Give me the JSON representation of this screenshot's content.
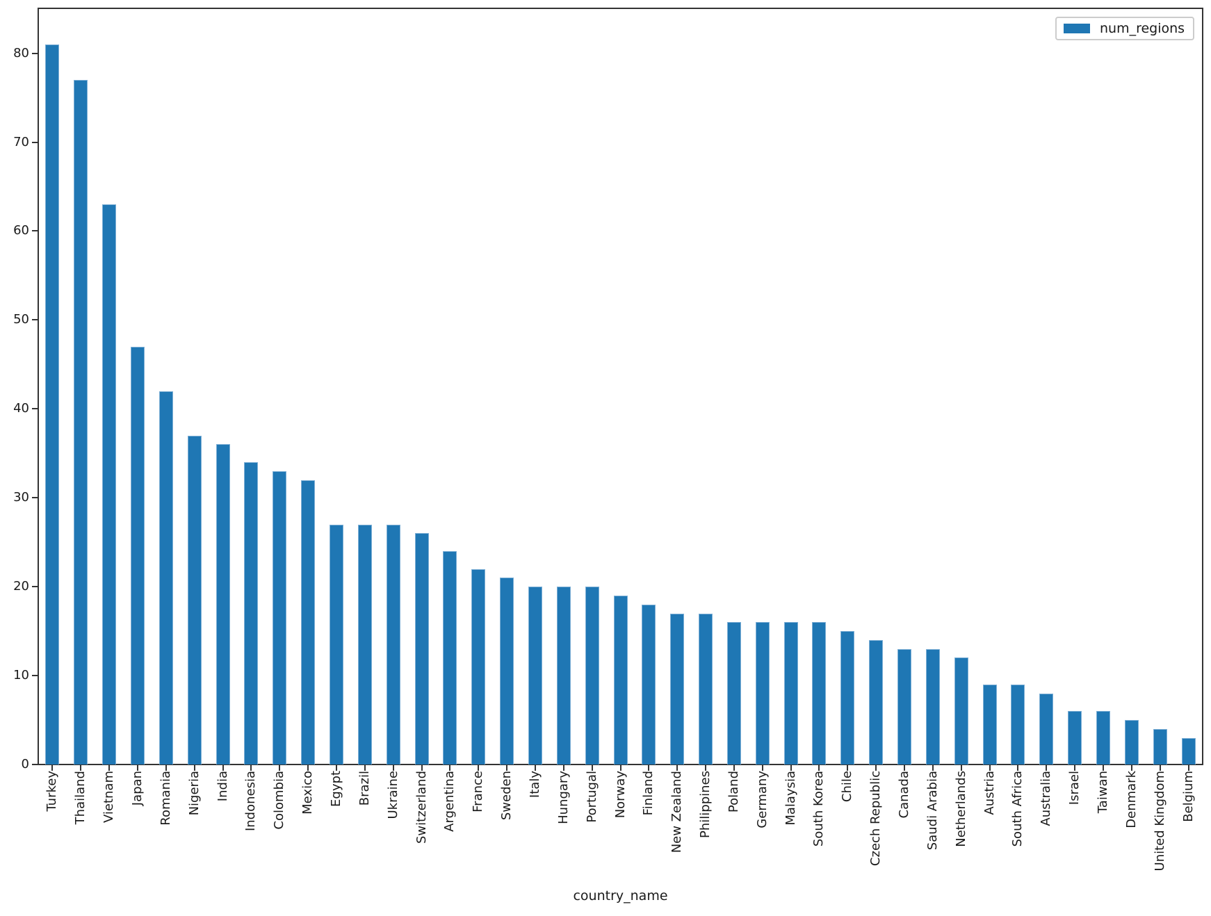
{
  "chart_data": {
    "type": "bar",
    "title": "",
    "xlabel": "country_name",
    "ylabel": "",
    "series_label": "num_regions",
    "legend_position": "upper right",
    "grid": false,
    "x_tick_rotation": 90,
    "ylim": [
      0,
      85.05
    ],
    "yticks": [
      0,
      10,
      20,
      30,
      40,
      50,
      60,
      70,
      80
    ],
    "bar_color": "#1f77b4",
    "bar_edge_color": "#7fb0d6",
    "axis_color": "#333333",
    "categories": [
      "Turkey",
      "Thailand",
      "Vietnam",
      "Japan",
      "Romania",
      "Nigeria",
      "India",
      "Indonesia",
      "Colombia",
      "Mexico",
      "Egypt",
      "Brazil",
      "Ukraine",
      "Switzerland",
      "Argentina",
      "France",
      "Sweden",
      "Italy",
      "Hungary",
      "Portugal",
      "Norway",
      "Finland",
      "New Zealand",
      "Philippines",
      "Poland",
      "Germany",
      "Malaysia",
      "South Korea",
      "Chile",
      "Czech Republic",
      "Canada",
      "Saudi Arabia",
      "Netherlands",
      "Austria",
      "South Africa",
      "Australia",
      "Israel",
      "Taiwan",
      "Denmark",
      "United Kingdom",
      "Belgium"
    ],
    "values": [
      81,
      77,
      63,
      47,
      42,
      37,
      36,
      34,
      33,
      32,
      27,
      27,
      27,
      26,
      24,
      22,
      21,
      20,
      20,
      20,
      19,
      18,
      17,
      17,
      16,
      16,
      16,
      16,
      15,
      14,
      13,
      13,
      12,
      9,
      9,
      8,
      6,
      6,
      5,
      4,
      3
    ]
  }
}
